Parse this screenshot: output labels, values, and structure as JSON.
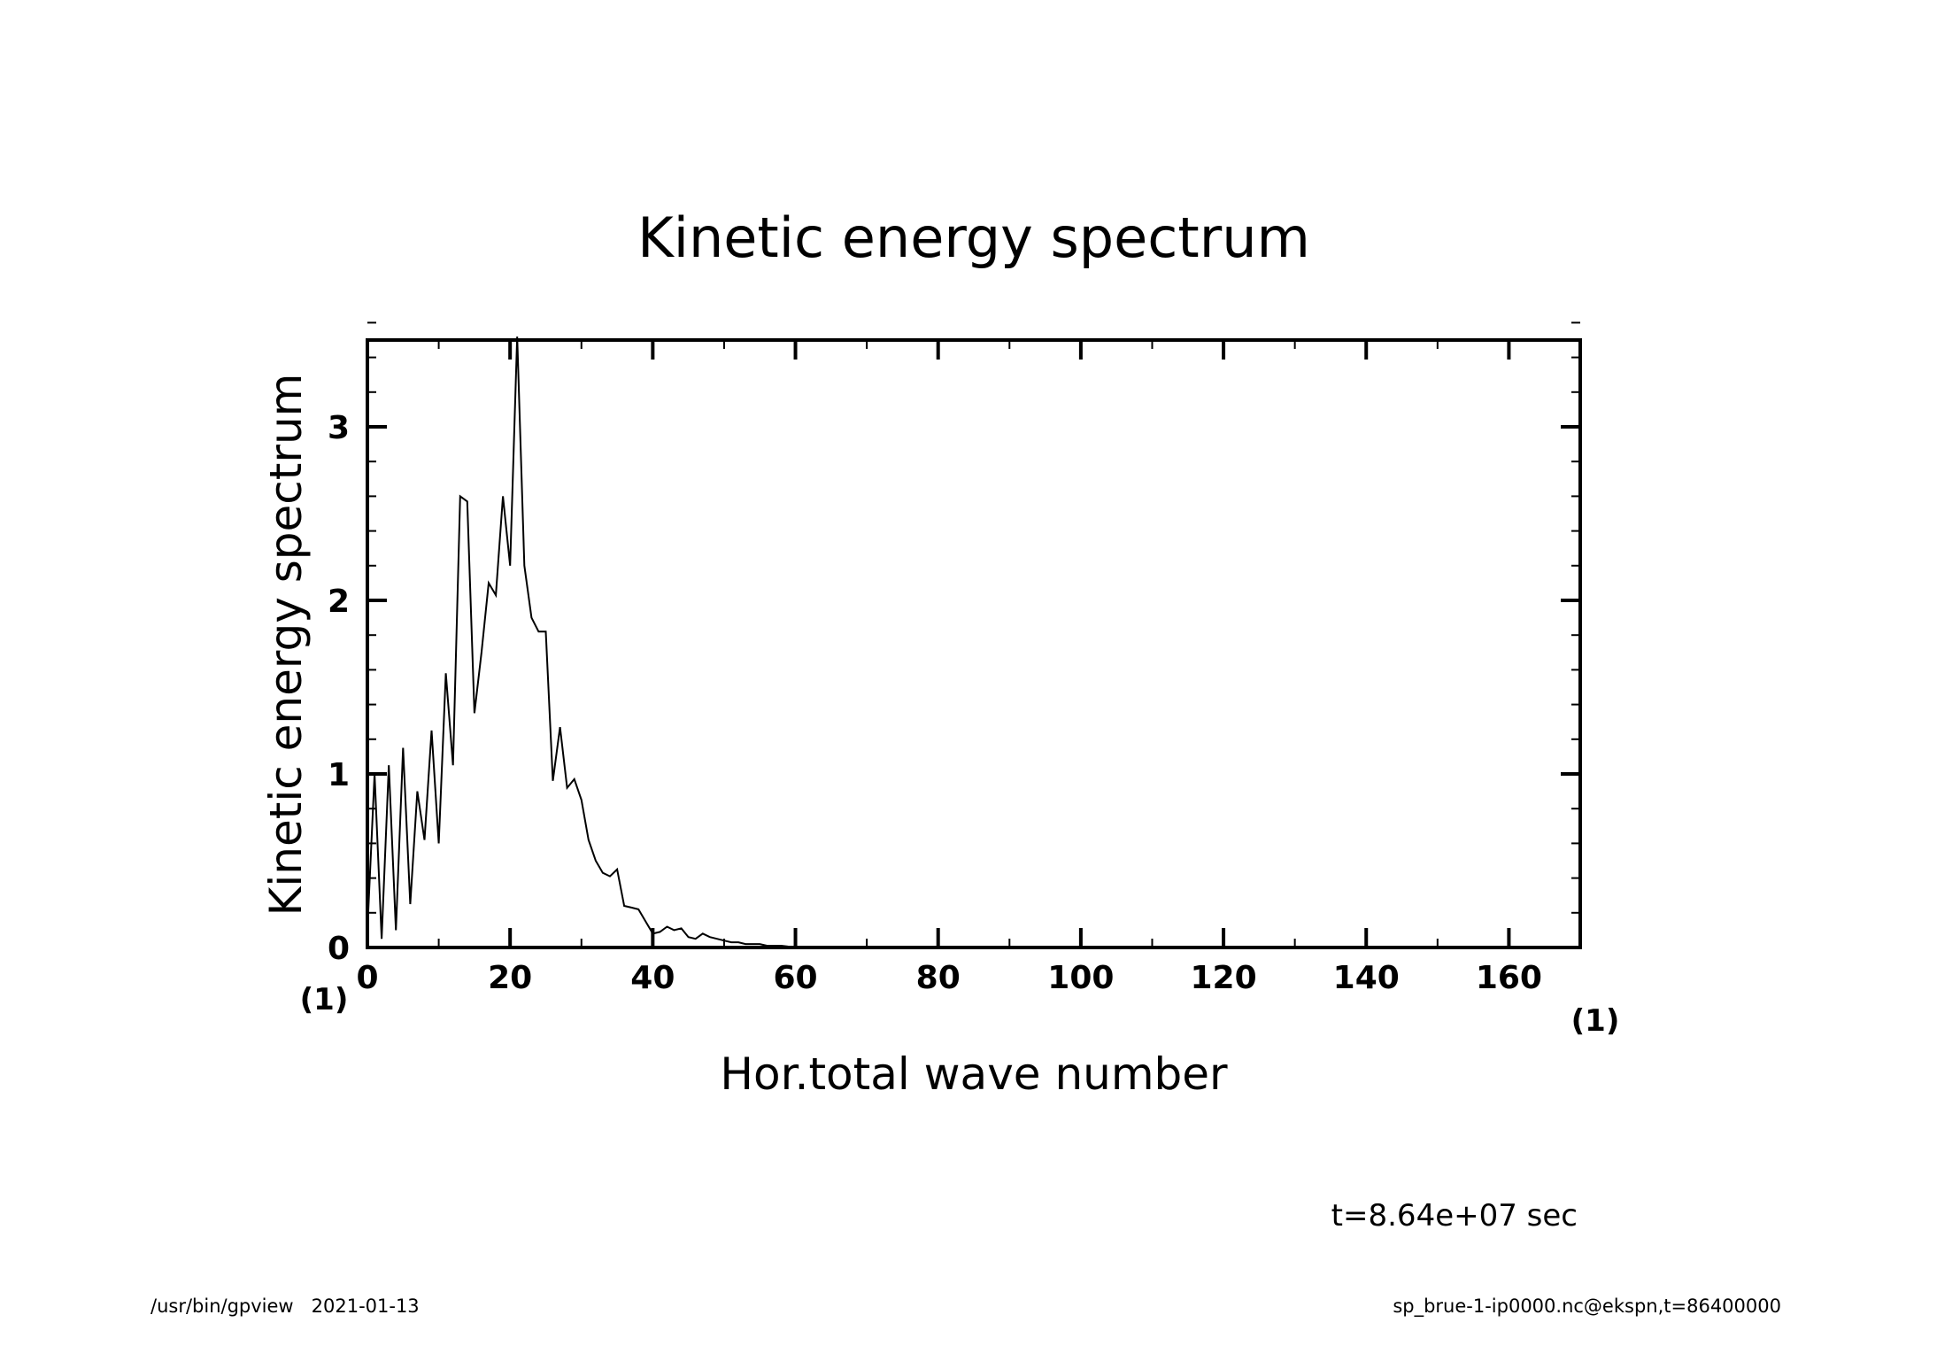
{
  "chart_data": {
    "type": "line",
    "title": "Kinetic energy spectrum",
    "xlabel": "Hor.total wave number",
    "ylabel": "Kinetic energy spectrum",
    "x_unit": "(1)",
    "y_unit": "(1)",
    "xlim": [
      0,
      170
    ],
    "ylim": [
      0,
      3.5
    ],
    "x_major_ticks": [
      0,
      20,
      40,
      60,
      80,
      100,
      120,
      140,
      160
    ],
    "x_minor_step": 10,
    "y_major_ticks": [
      0,
      1,
      2,
      3
    ],
    "y_minor_step": 0.2,
    "grid": false,
    "series": [
      {
        "name": "Kinetic energy spectrum",
        "x": [
          0,
          1,
          2,
          3,
          4,
          5,
          6,
          7,
          8,
          9,
          10,
          11,
          12,
          13,
          14,
          15,
          16,
          17,
          18,
          19,
          20,
          21,
          22,
          23,
          24,
          25,
          26,
          27,
          28,
          29,
          30,
          31,
          32,
          33,
          34,
          35,
          36,
          37,
          38,
          39,
          40,
          41,
          42,
          43,
          44,
          45,
          46,
          47,
          48,
          49,
          50,
          51,
          52,
          53,
          54,
          55,
          56,
          57,
          58,
          59,
          60,
          62,
          64,
          66,
          68,
          70,
          75,
          80,
          90,
          100,
          120,
          140,
          160,
          170
        ],
        "values": [
          0.1,
          1.0,
          0.05,
          1.05,
          0.1,
          1.15,
          0.25,
          0.9,
          0.62,
          1.25,
          0.6,
          1.58,
          1.05,
          2.6,
          2.57,
          1.35,
          1.7,
          2.1,
          2.03,
          2.6,
          2.2,
          3.52,
          2.2,
          1.9,
          1.82,
          1.82,
          0.96,
          1.27,
          0.92,
          0.97,
          0.85,
          0.62,
          0.5,
          0.43,
          0.41,
          0.45,
          0.24,
          0.23,
          0.22,
          0.15,
          0.08,
          0.09,
          0.12,
          0.1,
          0.11,
          0.06,
          0.05,
          0.08,
          0.06,
          0.05,
          0.04,
          0.03,
          0.03,
          0.02,
          0.02,
          0.02,
          0.01,
          0.01,
          0.01,
          0.005,
          0.003,
          0.002,
          0.001,
          0.001,
          0,
          0,
          0,
          0,
          0,
          0,
          0,
          0,
          0,
          0
        ]
      }
    ]
  },
  "annotations": {
    "time": "t=8.64e+07 sec",
    "footer_left": "/usr/bin/gpview   2021-01-13",
    "footer_right": "sp_brue-1-ip0000.nc@ekspn,t=86400000"
  }
}
